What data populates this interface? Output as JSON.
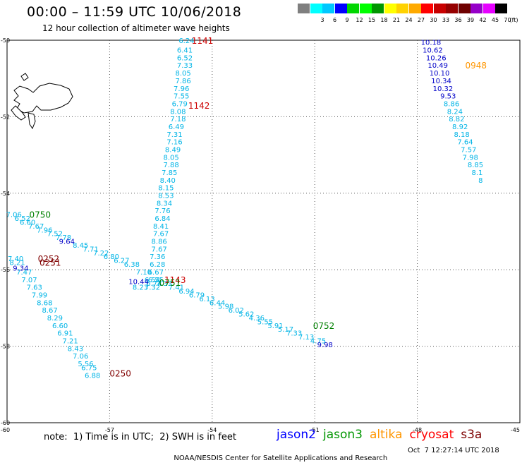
{
  "header": {
    "title": "00:00 – 11:59 UTC 10/06/2018",
    "subtitle": "12 hour collection of altimeter wave heights"
  },
  "legend": {
    "unit": "(ft)",
    "items": [
      {
        "label": "",
        "color": "#7f7f7f"
      },
      {
        "label": "3",
        "color": "#00ffff"
      },
      {
        "label": "6",
        "color": "#00c8ff"
      },
      {
        "label": "9",
        "color": "#0000ff"
      },
      {
        "label": "12",
        "color": "#00d700"
      },
      {
        "label": "15",
        "color": "#00ff00"
      },
      {
        "label": "18",
        "color": "#009600"
      },
      {
        "label": "21",
        "color": "#ffff00"
      },
      {
        "label": "24",
        "color": "#ffd200"
      },
      {
        "label": "27",
        "color": "#ffaa00"
      },
      {
        "label": "30",
        "color": "#ff0000"
      },
      {
        "label": "33",
        "color": "#c80000"
      },
      {
        "label": "36",
        "color": "#960000"
      },
      {
        "label": "39",
        "color": "#6e0000"
      },
      {
        "label": "42",
        "color": "#9600c8"
      },
      {
        "label": "45",
        "color": "#e600ff"
      },
      {
        "label": "70",
        "color": "#000000"
      }
    ]
  },
  "axes": {
    "lon_labels": [
      "-60",
      "-57",
      "-54",
      "-51",
      "-48",
      "-45"
    ],
    "lat_labels": [
      "-50",
      "-52",
      "-54",
      "-56",
      "-58",
      "-60"
    ]
  },
  "colors": {
    "swh_low": "#00b4e6",
    "swh_mid": "#0000c8",
    "jason2": "#0000ff",
    "jason3": "#009600",
    "altika": "#ff9600",
    "cryosat": "#ff0000",
    "s3a": "#7d0000",
    "time_1141": "#cc0000",
    "time_0948": "#ff9600",
    "time_0750": "#008000",
    "time_0252": "#800000",
    "time_0752": "#008000",
    "time_0250": "#800000"
  },
  "tracks": [
    {
      "color": "#00b4e6",
      "points": [
        {
          "lon": -54.75,
          "lat": -50.0,
          "v": "6.24"
        },
        {
          "lon": -54.8,
          "lat": -50.25,
          "v": "6.41"
        },
        {
          "lon": -54.8,
          "lat": -50.45,
          "v": "6.52"
        },
        {
          "lon": -54.8,
          "lat": -50.65,
          "v": "7.33"
        },
        {
          "lon": -54.85,
          "lat": -50.85,
          "v": "8.05"
        },
        {
          "lon": -54.85,
          "lat": -51.05,
          "v": "7.86"
        },
        {
          "lon": -54.9,
          "lat": -51.25,
          "v": "7.96"
        },
        {
          "lon": -54.9,
          "lat": -51.45,
          "v": "7.55"
        },
        {
          "lon": -54.95,
          "lat": -51.65,
          "v": "6.79"
        },
        {
          "lon": -55.0,
          "lat": -51.85,
          "v": "8.08"
        },
        {
          "lon": -55.0,
          "lat": -52.05,
          "v": "7.18"
        },
        {
          "lon": -55.05,
          "lat": -52.25,
          "v": "6.49"
        },
        {
          "lon": -55.1,
          "lat": -52.45,
          "v": "7.31"
        },
        {
          "lon": -55.1,
          "lat": -52.65,
          "v": "7.16"
        },
        {
          "lon": -55.15,
          "lat": -52.85,
          "v": "8.49"
        },
        {
          "lon": -55.2,
          "lat": -53.05,
          "v": "8.05"
        },
        {
          "lon": -55.2,
          "lat": -53.25,
          "v": "7.88"
        },
        {
          "lon": -55.25,
          "lat": -53.45,
          "v": "7.85"
        },
        {
          "lon": -55.3,
          "lat": -53.65,
          "v": "8.40"
        },
        {
          "lon": -55.35,
          "lat": -53.85,
          "v": "8.15"
        },
        {
          "lon": -55.35,
          "lat": -54.05,
          "v": "8.53"
        },
        {
          "lon": -55.4,
          "lat": -54.25,
          "v": "8.34"
        },
        {
          "lon": -55.45,
          "lat": -54.45,
          "v": "7.76"
        },
        {
          "lon": -55.45,
          "lat": -54.65,
          "v": "6.84"
        },
        {
          "lon": -55.5,
          "lat": -54.85,
          "v": "8.41"
        },
        {
          "lon": -55.5,
          "lat": -55.05,
          "v": "7.67"
        },
        {
          "lon": -55.55,
          "lat": -55.25,
          "v": "8.86"
        },
        {
          "lon": -55.55,
          "lat": -55.45,
          "v": "7.67"
        },
        {
          "lon": -55.6,
          "lat": -55.65,
          "v": "7.36"
        },
        {
          "lon": -55.6,
          "lat": -55.85,
          "v": "6.28"
        },
        {
          "lon": -55.65,
          "lat": -56.05,
          "v": "6.67"
        },
        {
          "lon": -55.65,
          "lat": -56.25,
          "v": "6.55"
        },
        {
          "lon": -55.7,
          "lat": -56.35,
          "v": "6.74"
        },
        {
          "lon": -55.75,
          "lat": -56.45,
          "v": "7.32"
        }
      ]
    },
    {
      "color": "#00b4e6",
      "points": [
        {
          "lon": -59.8,
          "lat": -54.55,
          "v": "7.06"
        },
        {
          "lon": -59.55,
          "lat": -54.65,
          "v": "6.52"
        },
        {
          "lon": -59.4,
          "lat": -54.75,
          "v": "6.60"
        },
        {
          "lon": -59.15,
          "lat": -54.85,
          "v": "7.67"
        },
        {
          "lon": -58.9,
          "lat": -54.95,
          "v": "7.96"
        },
        {
          "lon": -58.6,
          "lat": -55.05,
          "v": "7.52"
        },
        {
          "lon": -58.35,
          "lat": -55.15,
          "v": "7.78"
        },
        {
          "lon": -57.85,
          "lat": -55.35,
          "v": "8.45"
        },
        {
          "lon": -57.55,
          "lat": -55.45,
          "v": "7.71"
        },
        {
          "lon": -57.25,
          "lat": -55.55,
          "v": "7.22"
        },
        {
          "lon": -56.95,
          "lat": -55.65,
          "v": "6.80"
        },
        {
          "lon": -56.65,
          "lat": -55.75,
          "v": "6.27"
        },
        {
          "lon": -56.35,
          "lat": -55.85,
          "v": "6.38"
        },
        {
          "lon": -56.0,
          "lat": -56.05,
          "v": "7.10"
        },
        {
          "lon": -55.75,
          "lat": -56.25,
          "v": "6.54"
        },
        {
          "lon": -55.4,
          "lat": -56.35,
          "v": "7.33"
        },
        {
          "lon": -55.05,
          "lat": -56.45,
          "v": "7.41"
        },
        {
          "lon": -54.75,
          "lat": -56.55,
          "v": "6.94"
        },
        {
          "lon": -54.45,
          "lat": -56.65,
          "v": "6.79"
        },
        {
          "lon": -54.15,
          "lat": -56.75,
          "v": "6.13"
        },
        {
          "lon": -53.85,
          "lat": -56.85,
          "v": "6.44"
        },
        {
          "lon": -53.6,
          "lat": -56.95,
          "v": "5.98"
        },
        {
          "lon": -53.3,
          "lat": -57.05,
          "v": "6.02"
        },
        {
          "lon": -53.0,
          "lat": -57.15,
          "v": "5.62"
        },
        {
          "lon": -52.7,
          "lat": -57.25,
          "v": "4.36"
        },
        {
          "lon": -52.45,
          "lat": -57.35,
          "v": "5.55"
        },
        {
          "lon": -52.15,
          "lat": -57.45,
          "v": "5.91"
        },
        {
          "lon": -51.85,
          "lat": -57.55,
          "v": "5.17"
        },
        {
          "lon": -51.6,
          "lat": -57.65,
          "v": "7.33"
        },
        {
          "lon": -51.25,
          "lat": -57.75,
          "v": "7.13"
        },
        {
          "lon": -50.9,
          "lat": -57.85,
          "v": "4.75"
        }
      ]
    },
    {
      "color": "#00b4e6",
      "points": [
        {
          "lon": -59.75,
          "lat": -55.7,
          "v": "7.40"
        },
        {
          "lon": -59.7,
          "lat": -55.8,
          "v": "8.21"
        },
        {
          "lon": -59.5,
          "lat": -56.05,
          "v": "7.47"
        },
        {
          "lon": -59.35,
          "lat": -56.25,
          "v": "7.07"
        },
        {
          "lon": -59.2,
          "lat": -56.45,
          "v": "7.63"
        },
        {
          "lon": -59.05,
          "lat": -56.65,
          "v": "7.99"
        },
        {
          "lon": -58.9,
          "lat": -56.85,
          "v": "8.68"
        },
        {
          "lon": -58.75,
          "lat": -57.05,
          "v": "8.67"
        },
        {
          "lon": -58.6,
          "lat": -57.25,
          "v": "8.29"
        },
        {
          "lon": -58.45,
          "lat": -57.45,
          "v": "6.60"
        },
        {
          "lon": -58.3,
          "lat": -57.65,
          "v": "6.91"
        },
        {
          "lon": -58.15,
          "lat": -57.85,
          "v": "7.21"
        },
        {
          "lon": -58.0,
          "lat": -58.05,
          "v": "8.43"
        },
        {
          "lon": -57.85,
          "lat": -58.25,
          "v": "7.06"
        },
        {
          "lon": -57.7,
          "lat": -58.45,
          "v": "5.56"
        },
        {
          "lon": -57.6,
          "lat": -58.55,
          "v": "6.75"
        },
        {
          "lon": -57.5,
          "lat": -58.75,
          "v": "6.88"
        }
      ]
    },
    {
      "color": "#00b4e6",
      "points": [
        {
          "lon": -56.1,
          "lat": -56.45,
          "v": "8.23"
        }
      ]
    },
    {
      "color": "#0000c8",
      "points": [
        {
          "lon": -58.25,
          "lat": -55.25,
          "v": "9.64"
        },
        {
          "lon": -59.6,
          "lat": -55.95,
          "v": "9.34"
        },
        {
          "lon": -56.15,
          "lat": -56.3,
          "v": "10.44"
        },
        {
          "lon": -50.7,
          "lat": -57.95,
          "v": "9.98"
        }
      ]
    },
    {
      "color": "#0000c8",
      "points": [
        {
          "lon": -47.6,
          "lat": -50.05,
          "v": "10.18"
        },
        {
          "lon": -47.55,
          "lat": -50.25,
          "v": "10.62"
        },
        {
          "lon": -47.45,
          "lat": -50.45,
          "v": "10.26"
        },
        {
          "lon": -47.4,
          "lat": -50.65,
          "v": "10.49"
        },
        {
          "lon": -47.35,
          "lat": -50.85,
          "v": "10.10"
        },
        {
          "lon": -47.3,
          "lat": -51.05,
          "v": "10.34"
        },
        {
          "lon": -47.25,
          "lat": -51.25,
          "v": "10.32"
        },
        {
          "lon": -47.1,
          "lat": -51.45,
          "v": "9.53"
        }
      ]
    },
    {
      "color": "#00b4e6",
      "points": [
        {
          "lon": -47.0,
          "lat": -51.65,
          "v": "8.86"
        },
        {
          "lon": -46.9,
          "lat": -51.85,
          "v": "8.24"
        },
        {
          "lon": -46.85,
          "lat": -52.05,
          "v": "8.82"
        },
        {
          "lon": -46.75,
          "lat": -52.25,
          "v": "8.92"
        },
        {
          "lon": -46.7,
          "lat": -52.45,
          "v": "8.18"
        },
        {
          "lon": -46.6,
          "lat": -52.65,
          "v": "7.64"
        },
        {
          "lon": -46.5,
          "lat": -52.85,
          "v": "7.57"
        },
        {
          "lon": -46.45,
          "lat": -53.05,
          "v": "7.98"
        },
        {
          "lon": -46.3,
          "lat": -53.25,
          "v": "8.85"
        },
        {
          "lon": -46.25,
          "lat": -53.45,
          "v": "8.1"
        },
        {
          "lon": -46.15,
          "lat": -53.65,
          "v": "8"
        }
      ]
    }
  ],
  "time_labels": [
    {
      "lon": -54.6,
      "lat": -50.0,
      "t": "1141",
      "color": "#cc0000"
    },
    {
      "lon": -54.7,
      "lat": -51.7,
      "t": "1142",
      "color": "#cc0000"
    },
    {
      "lon": -55.4,
      "lat": -56.25,
      "t": "1143",
      "color": "#cc0000"
    },
    {
      "lon": -55.55,
      "lat": -56.33,
      "t": "0751",
      "color": "#008000"
    },
    {
      "lon": -46.6,
      "lat": -50.65,
      "t": "0948",
      "color": "#ff9600"
    },
    {
      "lon": -59.35,
      "lat": -54.55,
      "t": "0750",
      "color": "#008000"
    },
    {
      "lon": -59.1,
      "lat": -55.7,
      "t": "0252",
      "color": "#800000"
    },
    {
      "lon": -59.05,
      "lat": -55.8,
      "t": "0251",
      "color": "#800000"
    },
    {
      "lon": -51.05,
      "lat": -57.45,
      "t": "0752",
      "color": "#008000"
    },
    {
      "lon": -57.0,
      "lat": -58.7,
      "t": "0250",
      "color": "#800000"
    }
  ],
  "footer": {
    "note": "note:  1) Time is in UTC;  2) SWH is in feet",
    "satellites": [
      {
        "name": "jason2",
        "color": "#0000ff"
      },
      {
        "name": "jason3",
        "color": "#009600"
      },
      {
        "name": "altika",
        "color": "#ff9600"
      },
      {
        "name": "cryosat",
        "color": "#ff0000"
      },
      {
        "name": "s3a",
        "color": "#7d0000"
      }
    ],
    "credit": "NOAA/NESDIS Center for Satellite Applications and Research",
    "timestamp": "Oct  7 12:27:14 UTC 2018"
  }
}
